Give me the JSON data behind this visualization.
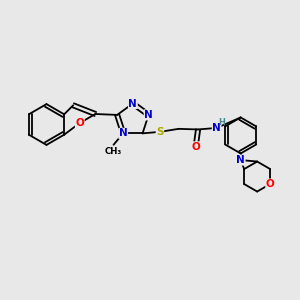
{
  "bg_color": "#e8e8e8",
  "bond_color": "#000000",
  "atom_colors": {
    "N": "#0000cc",
    "O": "#ff0000",
    "S": "#aaaa00",
    "C": "#000000",
    "H": "#4a8a8a"
  }
}
